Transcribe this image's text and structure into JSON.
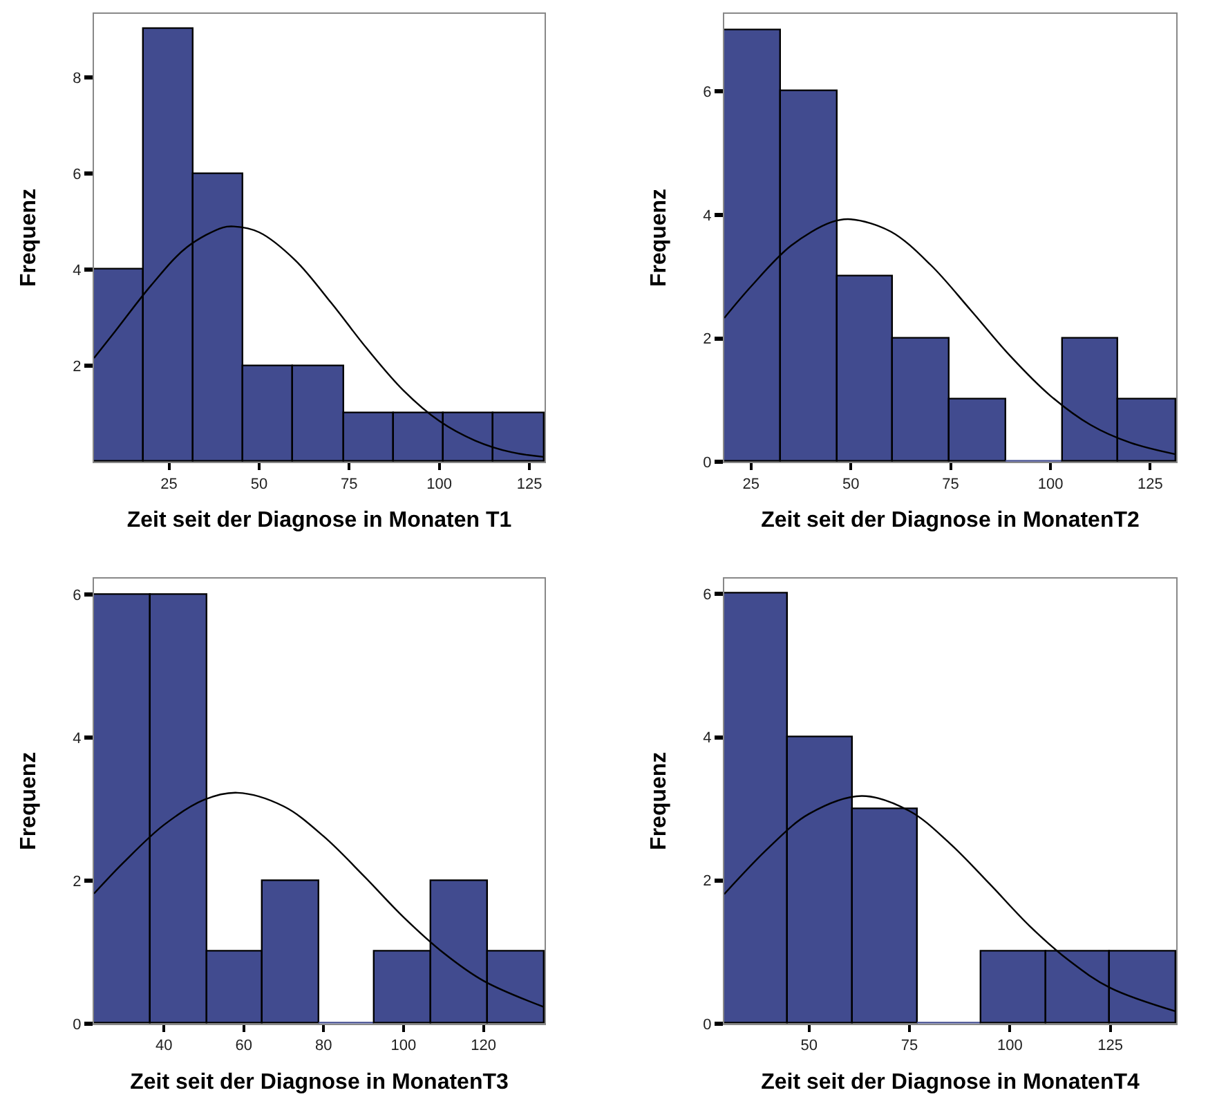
{
  "chart_data": [
    {
      "type": "histogram",
      "xlabel": "Zeit seit der Diagnose in Monaten T1",
      "ylabel": "Frequenz",
      "bins": [
        4.2,
        18.0,
        31.9,
        45.7,
        59.6,
        73.5,
        87.4,
        101.2,
        115.1,
        129.2
      ],
      "values": [
        4,
        9,
        6,
        2,
        2,
        1,
        1,
        1,
        1
      ],
      "color": "#414b8f",
      "xlim": [
        4.2,
        129.2
      ],
      "xticks": [
        25,
        50,
        75,
        100,
        125
      ],
      "ylim": [
        0,
        9.33
      ],
      "yticks": [
        2,
        4,
        6,
        8
      ],
      "series": [
        {
          "type": "line",
          "color": "#000000",
          "x": [
            4.2,
            10,
            20,
            30,
            40,
            43,
            50,
            60,
            70,
            80,
            90,
            100,
            110,
            120,
            129.2
          ],
          "values": [
            2.16,
            2.71,
            3.67,
            4.47,
            4.88,
            4.9,
            4.78,
            4.2,
            3.31,
            2.35,
            1.49,
            0.85,
            0.44,
            0.2,
            0.1
          ]
        }
      ]
    },
    {
      "type": "histogram",
      "xlabel": "Zeit seit der Diagnose in MonatenT2",
      "ylabel": "Frequenz",
      "bins": [
        18.3,
        32.5,
        46.7,
        60.6,
        74.8,
        89.0,
        103.2,
        117.0,
        131.5
      ],
      "values": [
        7,
        6,
        3,
        2,
        1,
        0,
        2,
        1
      ],
      "color": "#414b8f",
      "xlim": [
        18.3,
        131.5
      ],
      "xticks": [
        25,
        50,
        75,
        100,
        125
      ],
      "ylim": [
        0,
        7.26
      ],
      "yticks": [
        0,
        2,
        4,
        6
      ],
      "series": [
        {
          "type": "line",
          "color": "#000000",
          "x": [
            18.3,
            25,
            35,
            45,
            50,
            60,
            70,
            80,
            90,
            100,
            110,
            120,
            131.5
          ],
          "values": [
            2.33,
            2.84,
            3.5,
            3.88,
            3.93,
            3.73,
            3.19,
            2.46,
            1.71,
            1.07,
            0.6,
            0.31,
            0.12
          ]
        }
      ]
    },
    {
      "type": "histogram",
      "xlabel": "Zeit seit der Diagnose in MonatenT3",
      "ylabel": "Frequenz",
      "bins": [
        22.5,
        36.6,
        50.7,
        64.7,
        78.8,
        92.9,
        107.0,
        121.1,
        135.3
      ],
      "values": [
        6,
        6,
        1,
        2,
        0,
        1,
        2,
        1
      ],
      "color": "#414b8f",
      "xlim": [
        22.5,
        135.3
      ],
      "xticks": [
        40,
        60,
        80,
        100,
        120
      ],
      "ylim": [
        0,
        6.23
      ],
      "yticks": [
        0,
        2,
        4,
        6
      ],
      "series": [
        {
          "type": "line",
          "color": "#000000",
          "x": [
            22.5,
            30,
            40,
            50,
            58.4,
            70,
            80,
            90,
            100,
            110,
            120,
            135.3
          ],
          "values": [
            1.82,
            2.26,
            2.78,
            3.13,
            3.23,
            3.04,
            2.62,
            2.07,
            1.49,
            0.99,
            0.6,
            0.23
          ]
        }
      ]
    },
    {
      "type": "histogram",
      "xlabel": "Zeit seit der Diagnose in MonatenT4",
      "ylabel": "Frequenz",
      "bins": [
        28.9,
        44.8,
        60.9,
        77.0,
        92.9,
        109.0,
        125.0,
        141.4
      ],
      "values": [
        6,
        4,
        3,
        0,
        1,
        1,
        1
      ],
      "color": "#414b8f",
      "xlim": [
        28.9,
        141.4
      ],
      "xticks": [
        50,
        75,
        100,
        125
      ],
      "ylim": [
        0,
        6.22
      ],
      "yticks": [
        0,
        2,
        4,
        6
      ],
      "series": [
        {
          "type": "line",
          "color": "#000000",
          "x": [
            28.9,
            40,
            50,
            63.1,
            75,
            85,
            95,
            105,
            115,
            125,
            141.4
          ],
          "values": [
            1.81,
            2.46,
            2.93,
            3.18,
            2.97,
            2.52,
            1.95,
            1.36,
            0.87,
            0.5,
            0.17
          ]
        }
      ]
    }
  ]
}
